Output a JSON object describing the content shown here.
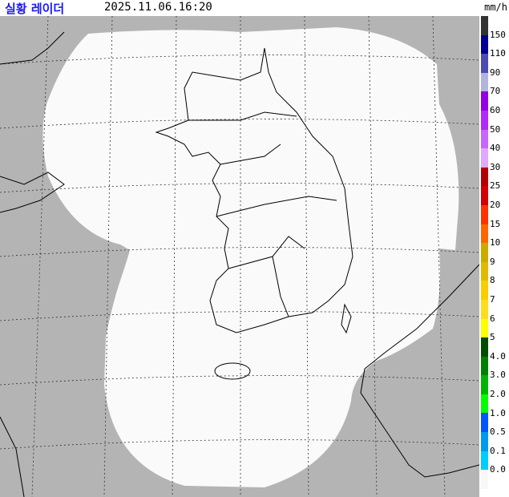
{
  "header": {
    "title": "실황 레이더",
    "timestamp": "2025.11.06.16:20"
  },
  "legend": {
    "unit": "mm/h",
    "colors": [
      "#333333",
      "#000090",
      "#4c4cb0",
      "#b3b4de",
      "#9300e4",
      "#b229ff",
      "#c864ff",
      "#e0a8ff",
      "#b40000",
      "#d20000",
      "#ff3300",
      "#ff6600",
      "#ccaa00",
      "#e0b900",
      "#f9cd00",
      "#ffdc1f",
      "#ffff00",
      "#004d00",
      "#008000",
      "#00b300",
      "#00ff00",
      "#0055ff",
      "#0099ee",
      "#00ccff",
      "#f8f8f8"
    ],
    "labels": [
      "150",
      "110",
      "90",
      "70",
      "60",
      "50",
      "40",
      "30",
      "25",
      "20",
      "15",
      "10",
      "9",
      "8",
      "7",
      "6",
      "5",
      "4.0",
      "3.0",
      "2.0",
      "1.0",
      "0.5",
      "0.1",
      "0.0"
    ]
  },
  "map": {
    "background_color": "#b4b4b4",
    "coverage_color": "#fafafa",
    "grid_style": "dashed"
  }
}
